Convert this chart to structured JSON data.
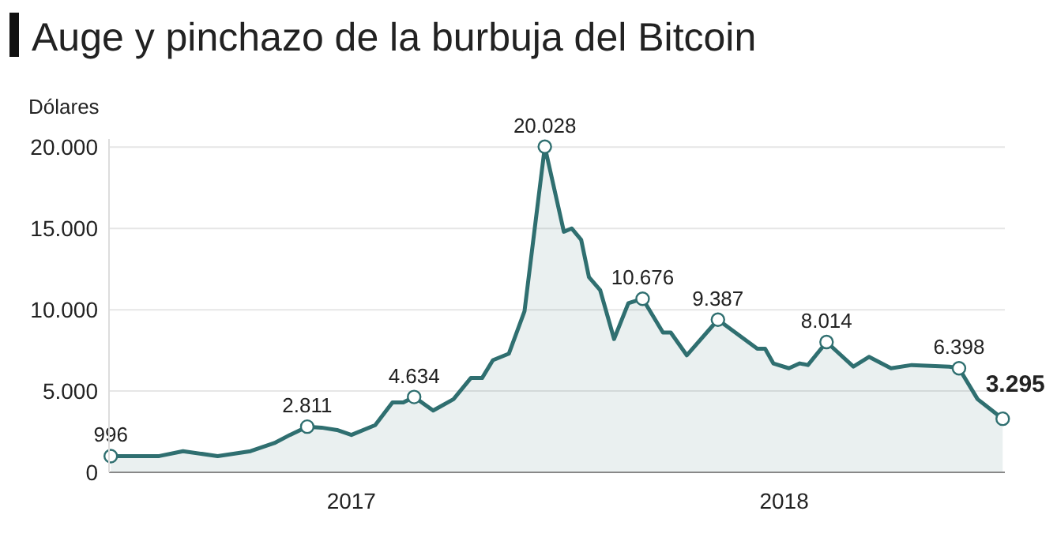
{
  "chart_data": {
    "type": "area",
    "title": "Auge y pinchazo de la burbuja del Bitcoin",
    "ylabel": "Dólares",
    "x": [
      2016.944,
      2017.056,
      2017.111,
      2017.191,
      2017.267,
      2017.322,
      2017.358,
      2017.398,
      2017.431,
      2017.467,
      2017.5,
      2017.555,
      2017.595,
      2017.62,
      2017.645,
      2017.689,
      2017.736,
      2017.776,
      2017.802,
      2017.827,
      2017.864,
      2017.9,
      2017.947,
      2017.991,
      2018.009,
      2018.031,
      2018.049,
      2018.075,
      2018.107,
      2018.14,
      2018.173,
      2018.22,
      2018.238,
      2018.275,
      2018.347,
      2018.438,
      2018.456,
      2018.475,
      2018.511,
      2018.536,
      2018.555,
      2018.598,
      2018.66,
      2018.696,
      2018.747,
      2018.795,
      2018.882,
      2018.904,
      2018.947,
      2019.005
    ],
    "series": [
      {
        "color": "#2f6f70",
        "values": [
          996,
          1000,
          1300,
          1000,
          1300,
          1800,
          2300,
          2811,
          2750,
          2600,
          2300,
          2900,
          4300,
          4300,
          4634,
          3800,
          4500,
          5800,
          5800,
          6900,
          7300,
          9900,
          20028,
          14800,
          15000,
          14300,
          12000,
          11200,
          8200,
          10400,
          10676,
          8600,
          8600,
          7200,
          9387,
          7600,
          7600,
          6700,
          6400,
          6700,
          6600,
          8014,
          6500,
          7100,
          6400,
          6600,
          6500,
          6398,
          4500,
          3295
        ],
        "value_labels": [
          "996",
          null,
          null,
          null,
          null,
          null,
          null,
          "2.811",
          null,
          null,
          null,
          null,
          null,
          null,
          "4.634",
          null,
          null,
          null,
          null,
          null,
          null,
          null,
          "20.028",
          null,
          null,
          null,
          null,
          null,
          null,
          null,
          "10.676",
          null,
          null,
          null,
          "9.387",
          null,
          null,
          null,
          null,
          null,
          null,
          "8.014",
          null,
          null,
          null,
          null,
          null,
          "6.398",
          null,
          "3.295"
        ]
      }
    ],
    "xlim": [
      2016.94,
      2019.01
    ],
    "xticks": [
      {
        "value": 2017.5,
        "label": "2017"
      },
      {
        "value": 2018.5,
        "label": "2018"
      }
    ],
    "ylim": [
      0,
      20500
    ],
    "yticks": [
      0,
      {
        "value": 5000,
        "label": "5.000"
      },
      {
        "value": 10000,
        "label": "10.000"
      },
      {
        "value": 15000,
        "label": "15.000"
      },
      {
        "value": 20000,
        "label": "20.000"
      }
    ],
    "grid": "y"
  }
}
